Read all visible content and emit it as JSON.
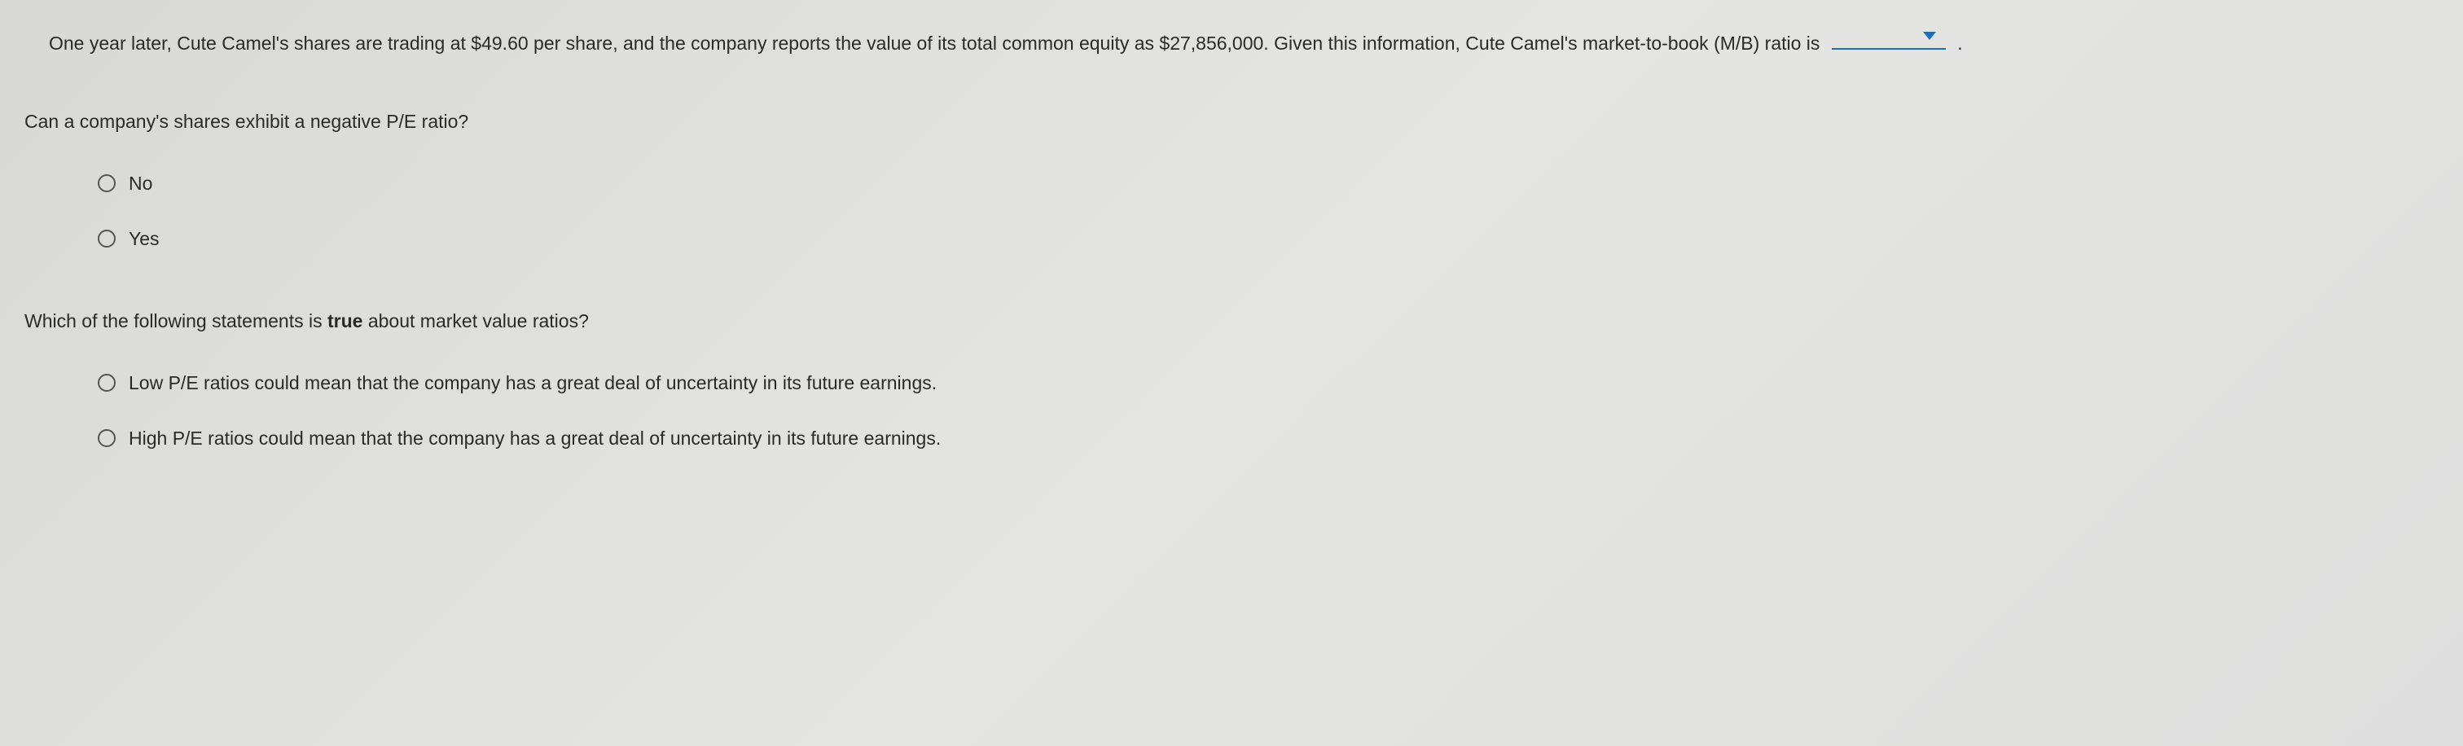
{
  "paragraph1": {
    "text_before": "One year later, Cute Camel's shares are trading at $49.60 per share, and the company reports the value of its total common equity as $27,856,000. Given this information, Cute Camel's market-to-book (M/B) ratio is ",
    "text_after": " ."
  },
  "question1": {
    "prompt": "Can a company's shares exhibit a negative P/E ratio?",
    "options": {
      "opt1": "No",
      "opt2": "Yes"
    }
  },
  "question2": {
    "prompt_before": "Which of the following statements is ",
    "prompt_bold": "true",
    "prompt_after": " about market value ratios?",
    "options": {
      "opt1": "Low P/E ratios could mean that the company has a great deal of uncertainty in its future earnings.",
      "opt2": "High P/E ratios could mean that the company has a great deal of uncertainty in its future earnings."
    }
  },
  "colors": {
    "text": "#2a2a2a",
    "link": "#1a6fbf",
    "background": "#e0e0dd",
    "radio_border": "#555555"
  },
  "typography": {
    "body_fontsize": 23,
    "body_family": "Arial",
    "line_height": 2.0
  }
}
